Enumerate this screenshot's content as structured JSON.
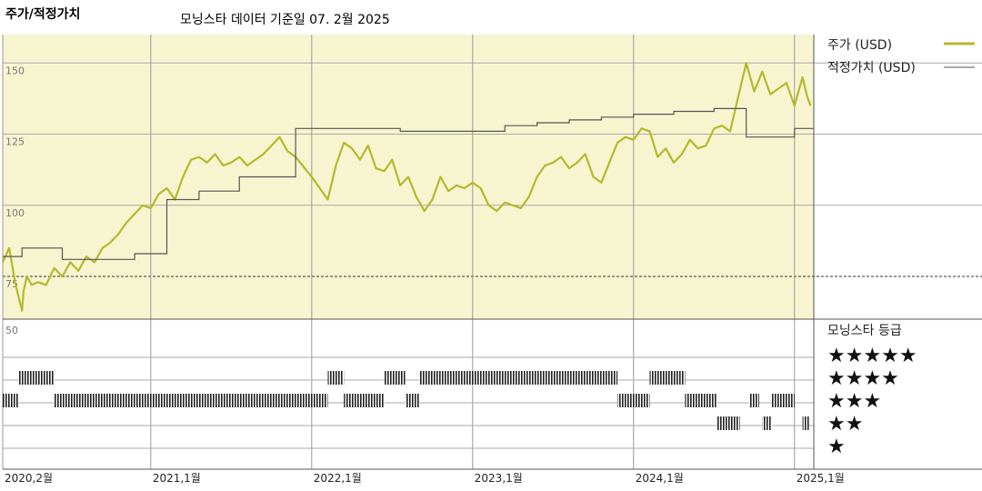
{
  "chart_data": {
    "type": "line",
    "title": "주가/적정가치",
    "subtitle": "모닝스타 데이터 기준일 07. 2월 2025",
    "y_ticks": [
      "150",
      "125",
      "100",
      "75"
    ],
    "ylim": [
      60,
      160
    ],
    "x_labels": [
      "2020,2월",
      "2021,1월",
      "2022,1월",
      "2023,1월",
      "2024,1월",
      "2025,1월"
    ],
    "x_label_dates": [
      2020.08,
      2021.0,
      2022.0,
      2023.0,
      2024.0,
      2025.0
    ],
    "xlim": [
      2020.08,
      2025.12
    ],
    "grid": true,
    "legend_position": "top-right",
    "colors": {
      "price": "#b5b82e",
      "fair_value": "#555555",
      "plot_bg": "#f7f5cf"
    },
    "series": [
      {
        "name": "주가 (USD)",
        "x": [
          2020.08,
          2020.12,
          2020.16,
          2020.2,
          2020.21,
          2020.23,
          2020.26,
          2020.3,
          2020.35,
          2020.4,
          2020.45,
          2020.5,
          2020.55,
          2020.6,
          2020.65,
          2020.7,
          2020.75,
          2020.8,
          2020.85,
          2020.9,
          2020.95,
          2021.0,
          2021.05,
          2021.1,
          2021.15,
          2021.2,
          2021.25,
          2021.3,
          2021.35,
          2021.4,
          2021.45,
          2021.5,
          2021.55,
          2021.6,
          2021.65,
          2021.7,
          2021.75,
          2021.8,
          2021.85,
          2021.9,
          2022.0,
          2022.05,
          2022.1,
          2022.15,
          2022.2,
          2022.25,
          2022.3,
          2022.35,
          2022.4,
          2022.45,
          2022.5,
          2022.55,
          2022.6,
          2022.65,
          2022.7,
          2022.75,
          2022.8,
          2022.85,
          2022.9,
          2022.95,
          2023.0,
          2023.05,
          2023.1,
          2023.15,
          2023.2,
          2023.25,
          2023.3,
          2023.35,
          2023.4,
          2023.45,
          2023.5,
          2023.55,
          2023.6,
          2023.65,
          2023.7,
          2023.75,
          2023.8,
          2023.85,
          2023.9,
          2023.95,
          2024.0,
          2024.05,
          2024.1,
          2024.15,
          2024.2,
          2024.25,
          2024.3,
          2024.35,
          2024.4,
          2024.45,
          2024.5,
          2024.55,
          2024.6,
          2024.65,
          2024.7,
          2024.75,
          2024.8,
          2024.85,
          2024.9,
          2024.95,
          2025.0,
          2025.05,
          2025.08,
          2025.1
        ],
        "values": [
          80,
          85,
          72,
          63,
          70,
          75,
          72,
          73,
          72,
          78,
          75,
          80,
          77,
          82,
          80,
          85,
          87,
          90,
          94,
          97,
          100,
          99,
          104,
          106,
          102,
          110,
          116,
          117,
          115,
          118,
          114,
          115,
          117,
          114,
          116,
          118,
          121,
          124,
          119,
          117,
          110,
          106,
          102,
          114,
          122,
          120,
          116,
          121,
          113,
          112,
          116,
          107,
          110,
          103,
          98,
          102,
          110,
          105,
          107,
          106,
          108,
          106,
          100,
          98,
          101,
          100,
          99,
          103,
          110,
          114,
          115,
          117,
          113,
          115,
          118,
          110,
          108,
          115,
          122,
          124,
          123,
          127,
          126,
          117,
          120,
          115,
          118,
          123,
          120,
          121,
          127,
          128,
          126,
          138,
          150,
          140,
          147,
          139,
          141,
          143,
          135,
          145,
          138,
          135
        ]
      },
      {
        "name": "적정가치 (USD)",
        "step": true,
        "x": [
          2020.08,
          2020.2,
          2020.45,
          2020.9,
          2021.1,
          2021.3,
          2021.55,
          2021.9,
          2022.55,
          2023.0,
          2023.2,
          2023.4,
          2023.6,
          2023.8,
          2024.0,
          2024.25,
          2024.5,
          2024.7,
          2024.75,
          2025.0,
          2025.12
        ],
        "values": [
          82,
          85,
          81,
          83,
          102,
          105,
          110,
          127,
          126,
          126,
          128,
          129,
          130,
          131,
          132,
          133,
          134,
          124,
          124,
          127,
          127
        ]
      }
    ],
    "rating_panel": {
      "title": "모닝스타 등급",
      "top_tick": "50",
      "levels": [
        "★★★★★",
        "★★★★",
        "★★★",
        "★★",
        "★"
      ],
      "periods": [
        {
          "stars": 3,
          "from": 2020.08,
          "to": 2020.18
        },
        {
          "stars": 4,
          "from": 2020.18,
          "to": 2020.4
        },
        {
          "stars": 3,
          "from": 2020.4,
          "to": 2022.1
        },
        {
          "stars": 4,
          "from": 2022.1,
          "to": 2022.2
        },
        {
          "stars": 3,
          "from": 2022.2,
          "to": 2022.45
        },
        {
          "stars": 4,
          "from": 2022.45,
          "to": 2022.58
        },
        {
          "stars": 3,
          "from": 2022.58,
          "to": 2022.67
        },
        {
          "stars": 4,
          "from": 2022.67,
          "to": 2023.9
        },
        {
          "stars": 3,
          "from": 2023.9,
          "to": 2024.1
        },
        {
          "stars": 4,
          "from": 2024.1,
          "to": 2024.32
        },
        {
          "stars": 3,
          "from": 2024.32,
          "to": 2024.52
        },
        {
          "stars": 2,
          "from": 2024.52,
          "to": 2024.66
        },
        {
          "stars": 3,
          "from": 2024.72,
          "to": 2024.78
        },
        {
          "stars": 2,
          "from": 2024.8,
          "to": 2024.86
        },
        {
          "stars": 3,
          "from": 2024.86,
          "to": 2025.0
        },
        {
          "stars": 2,
          "from": 2025.05,
          "to": 2025.09
        }
      ]
    }
  }
}
